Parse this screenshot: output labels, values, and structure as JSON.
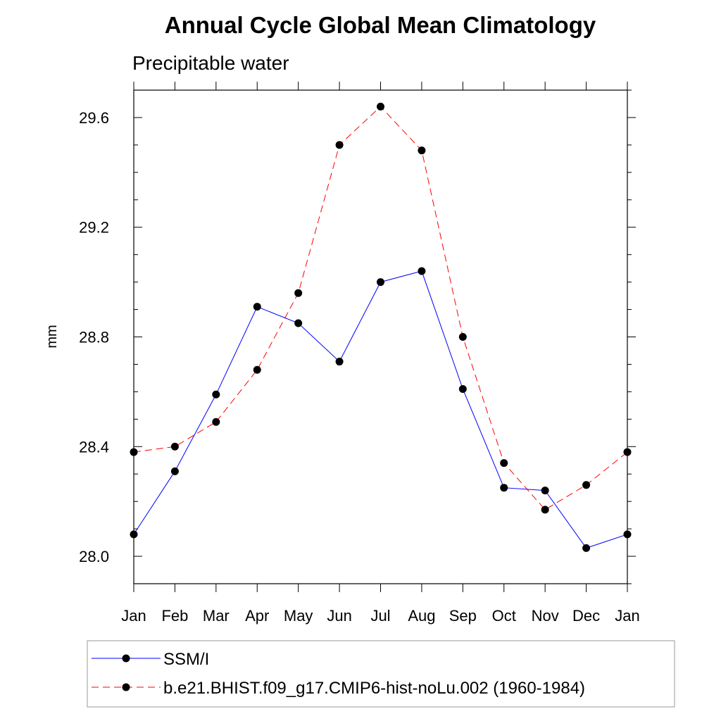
{
  "chart_data": {
    "type": "line",
    "title": "Annual Cycle Global Mean Climatology",
    "subtitle": "Precipitable water",
    "xlabel": "",
    "ylabel": "mm",
    "categories": [
      "Jan",
      "Feb",
      "Mar",
      "Apr",
      "May",
      "Jun",
      "Jul",
      "Aug",
      "Sep",
      "Oct",
      "Nov",
      "Dec",
      "Jan"
    ],
    "ylim": [
      27.9,
      29.7
    ],
    "y_ticks": [
      28.0,
      28.4,
      28.8,
      29.2,
      29.6
    ],
    "y_tick_labels": [
      "28.0",
      "28.4",
      "28.8",
      "29.2",
      "29.6"
    ],
    "grid": false,
    "legend_position": "bottom",
    "series": [
      {
        "name": "SSM/I",
        "color": "#0000ff",
        "dashed": false,
        "marker": "filled-circle",
        "values": [
          28.08,
          28.31,
          28.59,
          28.91,
          28.85,
          28.71,
          29.0,
          29.04,
          28.61,
          28.25,
          28.24,
          28.03,
          28.08
        ]
      },
      {
        "name": "b.e21.BHIST.f09_g17.CMIP6-hist-noLu.002 (1960-1984)",
        "color": "#ff0000",
        "dashed": true,
        "marker": "filled-circle",
        "values": [
          28.38,
          28.4,
          28.49,
          28.68,
          28.96,
          29.5,
          29.64,
          29.48,
          28.8,
          28.34,
          28.17,
          28.26,
          28.38
        ]
      }
    ]
  }
}
